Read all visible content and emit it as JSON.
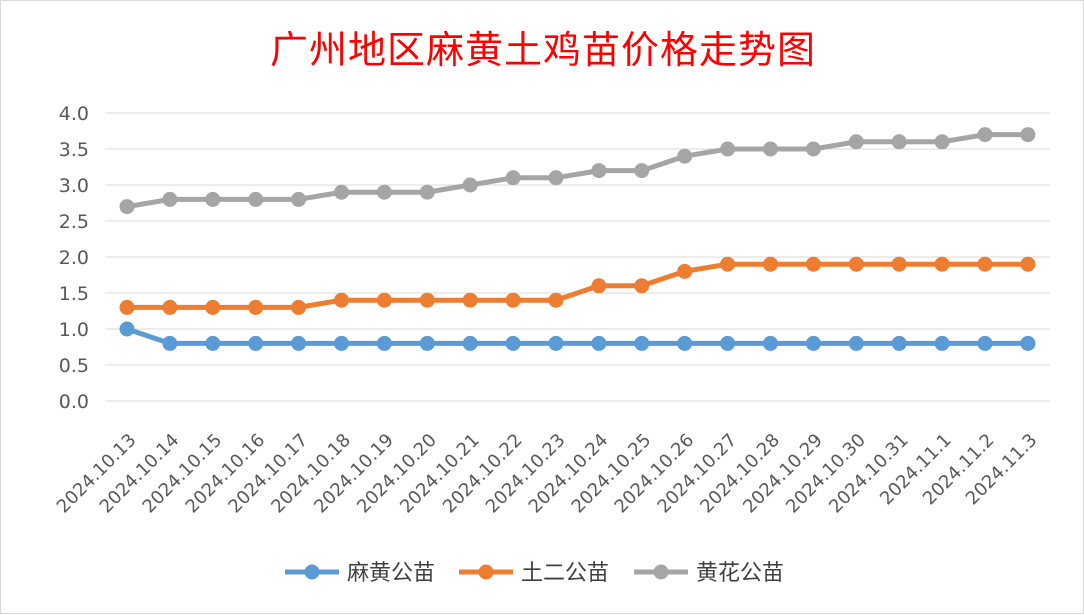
{
  "chart_data": {
    "type": "line",
    "title": "广州地区麻黄土鸡苗价格走势图",
    "xlabel": "",
    "ylabel": "",
    "ylim": [
      0,
      4.0
    ],
    "yticks": [
      "0.0",
      "0.5",
      "1.0",
      "1.5",
      "2.0",
      "2.5",
      "3.0",
      "3.5",
      "4.0"
    ],
    "grid": true,
    "legend_position": "bottom",
    "categories": [
      "2024.10.13",
      "2024.10.14",
      "2024.10.15",
      "2024.10.16",
      "2024.10.17",
      "2024.10.18",
      "2024.10.19",
      "2024.10.20",
      "2024.10.21",
      "2024.10.22",
      "2024.10.23",
      "2024.10.24",
      "2024.10.25",
      "2024.10.26",
      "2024.10.27",
      "2024.10.28",
      "2024.10.29",
      "2024.10.30",
      "2024.10.31",
      "2024.11.1",
      "2024.11.2",
      "2024.11.3"
    ],
    "series": [
      {
        "name": "麻黄公苗",
        "color": "#5b9bd5",
        "values": [
          1.0,
          0.8,
          0.8,
          0.8,
          0.8,
          0.8,
          0.8,
          0.8,
          0.8,
          0.8,
          0.8,
          0.8,
          0.8,
          0.8,
          0.8,
          0.8,
          0.8,
          0.8,
          0.8,
          0.8,
          0.8,
          0.8
        ]
      },
      {
        "name": "土二公苗",
        "color": "#ed7d31",
        "values": [
          1.3,
          1.3,
          1.3,
          1.3,
          1.3,
          1.4,
          1.4,
          1.4,
          1.4,
          1.4,
          1.4,
          1.6,
          1.6,
          1.8,
          1.9,
          1.9,
          1.9,
          1.9,
          1.9,
          1.9,
          1.9,
          1.9
        ]
      },
      {
        "name": "黄花公苗",
        "color": "#a5a5a5",
        "values": [
          2.7,
          2.8,
          2.8,
          2.8,
          2.8,
          2.9,
          2.9,
          2.9,
          3.0,
          3.1,
          3.1,
          3.2,
          3.2,
          3.4,
          3.5,
          3.5,
          3.5,
          3.6,
          3.6,
          3.6,
          3.7,
          3.7
        ]
      }
    ]
  }
}
